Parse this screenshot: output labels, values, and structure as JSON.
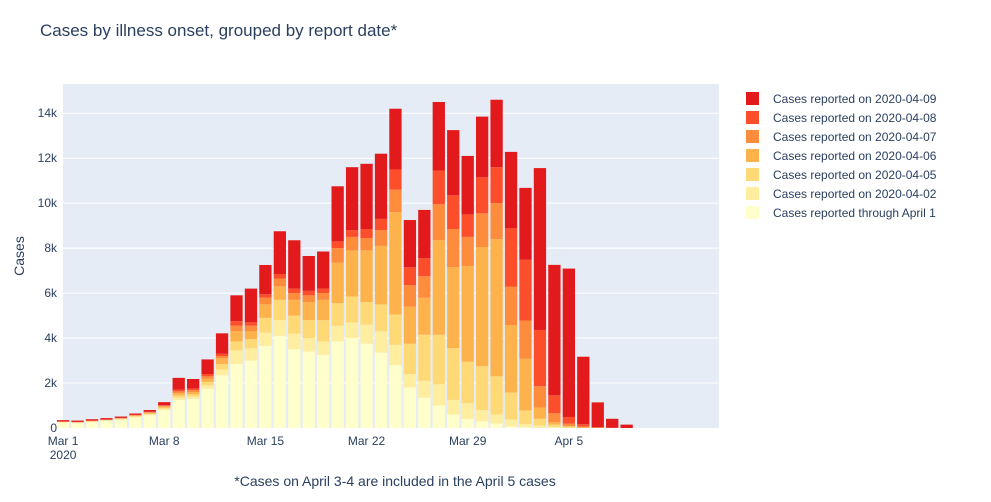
{
  "chart_data": {
    "type": "bar",
    "stacked": true,
    "title": "Cases by illness onset, grouped by report date*",
    "xlabel": "",
    "ylabel": "Cases",
    "note": "*Cases on April 3-4 are included in the April 5 cases",
    "x_start": "2020-03-01",
    "x_tick_labels": [
      "Mar 1",
      "Mar 8",
      "Mar 15",
      "Mar 22",
      "Mar 29",
      "Apr 5"
    ],
    "x_tick_year": "2020",
    "y_tick_labels": [
      "0",
      "2k",
      "4k",
      "6k",
      "8k",
      "10k",
      "12k",
      "14k"
    ],
    "ylim": [
      0,
      15300
    ],
    "grid": true,
    "legend_position": "right",
    "categories": [
      "2020-03-01",
      "2020-03-02",
      "2020-03-03",
      "2020-03-04",
      "2020-03-05",
      "2020-03-06",
      "2020-03-07",
      "2020-03-08",
      "2020-03-09",
      "2020-03-10",
      "2020-03-11",
      "2020-03-12",
      "2020-03-13",
      "2020-03-14",
      "2020-03-15",
      "2020-03-16",
      "2020-03-17",
      "2020-03-18",
      "2020-03-19",
      "2020-03-20",
      "2020-03-21",
      "2020-03-22",
      "2020-03-23",
      "2020-03-24",
      "2020-03-25",
      "2020-03-26",
      "2020-03-27",
      "2020-03-28",
      "2020-03-29",
      "2020-03-30",
      "2020-03-31",
      "2020-04-01",
      "2020-04-02",
      "2020-04-03",
      "2020-04-04",
      "2020-04-05",
      "2020-04-06",
      "2020-04-07",
      "2020-04-08",
      "2020-04-09"
    ],
    "series": [
      {
        "name": "Cases reported through April 1",
        "color": "#ffffcc",
        "values": [
          250,
          230,
          270,
          320,
          360,
          470,
          570,
          800,
          1250,
          1300,
          1750,
          2350,
          2850,
          3000,
          3650,
          4100,
          3500,
          3400,
          3250,
          3850,
          4000,
          3750,
          3350,
          2800,
          1800,
          1350,
          1000,
          600,
          400,
          300,
          200,
          80,
          30,
          10,
          5,
          0,
          0,
          0,
          0,
          0
        ]
      },
      {
        "name": "Cases reported on 2020-04-02",
        "color": "#ffeda0",
        "values": [
          10,
          10,
          20,
          20,
          30,
          40,
          40,
          60,
          100,
          100,
          150,
          250,
          600,
          550,
          600,
          700,
          700,
          600,
          600,
          700,
          700,
          850,
          950,
          900,
          600,
          750,
          950,
          650,
          700,
          500,
          400,
          300,
          150,
          100,
          50,
          10,
          0,
          0,
          0,
          0
        ]
      },
      {
        "name": "Cases reported on 2020-04-05",
        "color": "#fed976",
        "values": [
          10,
          10,
          10,
          10,
          20,
          20,
          30,
          50,
          100,
          100,
          150,
          250,
          400,
          400,
          650,
          900,
          800,
          800,
          950,
          1000,
          1150,
          1000,
          1200,
          1350,
          1350,
          2050,
          2200,
          2300,
          1850,
          1950,
          1700,
          1200,
          600,
          300,
          100,
          50,
          10,
          0,
          0,
          0
        ]
      },
      {
        "name": "Cases reported on 2020-04-06",
        "color": "#feb24c",
        "values": [
          10,
          10,
          10,
          10,
          20,
          30,
          40,
          50,
          100,
          100,
          150,
          250,
          450,
          350,
          600,
          600,
          700,
          800,
          900,
          1800,
          2050,
          2300,
          2600,
          4550,
          1650,
          1650,
          4200,
          3600,
          4250,
          5300,
          6100,
          3000,
          2300,
          500,
          100,
          30,
          10,
          0,
          0,
          0
        ]
      },
      {
        "name": "Cases reported on 2020-04-07",
        "color": "#fd8d3c",
        "values": [
          5,
          5,
          10,
          10,
          10,
          15,
          20,
          30,
          80,
          80,
          100,
          100,
          250,
          250,
          300,
          350,
          300,
          300,
          300,
          650,
          600,
          550,
          700,
          1000,
          950,
          950,
          1600,
          1700,
          1300,
          1500,
          1600,
          1700,
          1700,
          950,
          400,
          100,
          50,
          10,
          0,
          0
        ]
      },
      {
        "name": "Cases reported on 2020-04-08",
        "color": "#fc4e2a",
        "values": [
          5,
          5,
          10,
          10,
          10,
          10,
          20,
          20,
          80,
          80,
          100,
          100,
          200,
          150,
          150,
          200,
          200,
          200,
          200,
          300,
          300,
          400,
          500,
          900,
          800,
          800,
          1500,
          1500,
          1000,
          1600,
          1600,
          2600,
          2700,
          2500,
          800,
          300,
          100,
          30,
          10,
          0
        ]
      },
      {
        "name": "Cases reported on 2020-04-09",
        "color": "#e31a1c",
        "values": [
          60,
          60,
          60,
          60,
          60,
          60,
          80,
          140,
          520,
          420,
          650,
          910,
          1150,
          1500,
          1300,
          1900,
          2150,
          1550,
          1650,
          2450,
          2800,
          2900,
          2900,
          2700,
          2100,
          2150,
          3050,
          2900,
          2600,
          2700,
          3000,
          3400,
          3200,
          7200,
          5800,
          6600,
          3000,
          1100,
          400,
          150
        ]
      }
    ]
  }
}
